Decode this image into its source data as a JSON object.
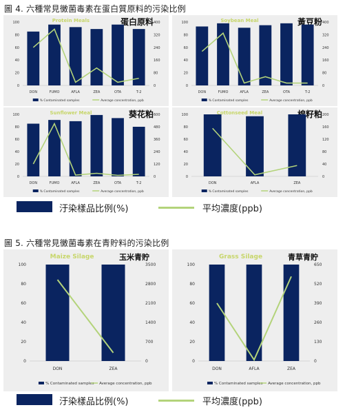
{
  "figure4": {
    "title": "圖 4. 六種常見黴菌毒素在蛋白質原料的污染比例",
    "legend": {
      "bar": "汙染樣品比例(%)",
      "line": "平均濃度(ppb)"
    }
  },
  "figure5": {
    "title": "圖 5. 六種常見黴菌毒素在青貯料的污染比例",
    "legend": {
      "bar": "汙染樣品比例(%)",
      "line": "平均濃度(ppb)"
    }
  },
  "colors": {
    "bar": "#0a2460",
    "line": "#b3d37a",
    "title_text": "#c7d66a",
    "panel_bg": "#eeeeee"
  },
  "chart_data": [
    {
      "type": "bar",
      "title": "Protein Meals",
      "label_zh": "蛋白原料",
      "categories": [
        "DON",
        "FUMO",
        "AFLA",
        "ZEA",
        "OTA",
        "T-2"
      ],
      "series": [
        {
          "name": "% Contaminated samples",
          "axis": "left",
          "values": [
            85,
            96,
            92,
            89,
            96,
            89
          ]
        },
        {
          "name": "Average concentration, ppb",
          "axis": "right",
          "type": "line",
          "values": [
            240,
            355,
            20,
            110,
            20,
            45
          ]
        }
      ],
      "ylim": [
        0,
        100
      ],
      "yticks": [
        0,
        20,
        40,
        60,
        80,
        100
      ],
      "y2lim": [
        0,
        400
      ],
      "y2ticks": [
        0,
        80,
        160,
        240,
        320,
        400
      ],
      "legend": [
        "% Contaminated samples",
        "Average concentration, ppb"
      ]
    },
    {
      "type": "bar",
      "title": "Soybean Meal",
      "label_zh": "黃豆粉",
      "categories": [
        "DON",
        "FUMO",
        "AFLA",
        "ZEA",
        "OTA",
        "T-2"
      ],
      "series": [
        {
          "name": "% Contaminated samples",
          "axis": "left",
          "values": [
            93,
            98,
            91,
            95,
            98,
            96
          ]
        },
        {
          "name": "Average concentration, ppb",
          "axis": "right",
          "type": "line",
          "values": [
            215,
            330,
            15,
            55,
            15,
            15
          ]
        }
      ],
      "ylim": [
        0,
        100
      ],
      "yticks": [
        0,
        20,
        40,
        60,
        80,
        100
      ],
      "y2lim": [
        0,
        400
      ],
      "y2ticks": [
        0,
        80,
        160,
        240,
        320,
        400
      ],
      "legend": [
        "% Contaminated samples",
        "Average concentration, ppb"
      ]
    },
    {
      "type": "bar",
      "title": "Sunflower Meal",
      "label_zh": "葵花粕",
      "categories": [
        "DON",
        "FUMO",
        "AFLA",
        "ZEA",
        "OTA",
        "T-2"
      ],
      "series": [
        {
          "name": "% Contaminated samples",
          "axis": "left",
          "values": [
            85,
            91,
            89,
            99,
            94,
            80
          ]
        },
        {
          "name": "Average concentration, ppb",
          "axis": "right",
          "type": "line",
          "values": [
            120,
            510,
            12,
            30,
            10,
            20
          ]
        }
      ],
      "ylim": [
        0,
        100
      ],
      "yticks": [
        0,
        20,
        40,
        60,
        80,
        100
      ],
      "y2lim": [
        0,
        600
      ],
      "y2ticks": [
        0,
        120,
        240,
        360,
        480,
        600
      ],
      "legend": [
        "% Contaminated samples",
        "Average concentration, ppb"
      ]
    },
    {
      "type": "bar",
      "title": "Cottonseed Meal",
      "label_zh": "棉籽粕",
      "categories": [
        "DON",
        "AFLA",
        "ZEA"
      ],
      "series": [
        {
          "name": "% Contaminated samples",
          "axis": "left",
          "values": [
            100,
            97,
            100
          ]
        },
        {
          "name": "Average concentration, ppb",
          "axis": "right",
          "type": "line",
          "values": [
            155,
            5,
            35
          ]
        }
      ],
      "ylim": [
        0,
        100
      ],
      "yticks": [
        0,
        20,
        40,
        60,
        80,
        100
      ],
      "y2lim": [
        0,
        200
      ],
      "y2ticks": [
        0,
        40,
        80,
        120,
        160,
        200
      ],
      "legend": [
        "% Contaminated samples",
        "Average concentration, ppb"
      ]
    },
    {
      "type": "bar",
      "title": "Maize Silage",
      "label_zh": "玉米青貯",
      "categories": [
        "DON",
        "ZEA"
      ],
      "series": [
        {
          "name": "% Contaminated samples",
          "axis": "left",
          "values": [
            100,
            100
          ]
        },
        {
          "name": "Average concentration, ppb",
          "axis": "right",
          "type": "line",
          "values": [
            2950,
            300
          ]
        }
      ],
      "ylim": [
        0,
        100
      ],
      "yticks": [
        0,
        20,
        40,
        60,
        80,
        100
      ],
      "y2lim": [
        0,
        3500
      ],
      "y2ticks": [
        0,
        700,
        1400,
        2100,
        2800,
        3500
      ],
      "legend": [
        "% Contaminated samples",
        "Average concentration, ppb"
      ]
    },
    {
      "type": "bar",
      "title": "Grass Silage",
      "label_zh": "青草青貯",
      "categories": [
        "DON",
        "AFLA",
        "ZEA"
      ],
      "series": [
        {
          "name": "% Contaminated samples",
          "axis": "left",
          "values": [
            100,
            100,
            100
          ]
        },
        {
          "name": "Average concentration, ppb",
          "axis": "right",
          "type": "line",
          "values": [
            390,
            8,
            570
          ]
        }
      ],
      "ylim": [
        0,
        100
      ],
      "yticks": [
        0,
        20,
        40,
        60,
        80,
        100
      ],
      "y2lim": [
        0,
        650
      ],
      "y2ticks": [
        0,
        130,
        260,
        390,
        520,
        650
      ],
      "legend": [
        "% Contaminated samples",
        "Average concentration, ppb"
      ]
    }
  ]
}
